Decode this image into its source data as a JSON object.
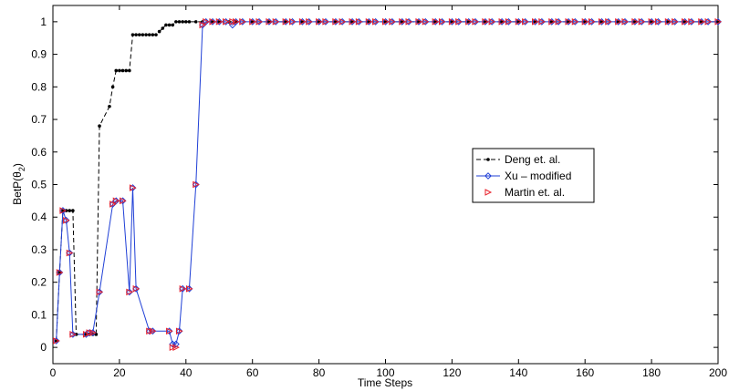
{
  "chart_data": {
    "type": "line",
    "title": "",
    "xlabel": "Time Steps",
    "ylabel_main": "BetP(θ",
    "ylabel_sub": "2",
    "ylabel_close": ")",
    "xlim": [
      0,
      200
    ],
    "ylim": [
      -0.05,
      1.05
    ],
    "xticks": [
      0,
      20,
      40,
      60,
      80,
      100,
      120,
      140,
      160,
      180,
      200
    ],
    "yticks": [
      0,
      0.1,
      0.2,
      0.3,
      0.4,
      0.5,
      0.6,
      0.7,
      0.8,
      0.9,
      1
    ],
    "grid": false,
    "legend_position": "center-right",
    "series": [
      {
        "name": "Deng et. al.",
        "style": "dashed",
        "marker": "dot",
        "color": "#000000",
        "points": [
          [
            1,
            0.02
          ],
          [
            2,
            0.23
          ],
          [
            3,
            0.42
          ],
          [
            4,
            0.42
          ],
          [
            5,
            0.42
          ],
          [
            6,
            0.42
          ],
          [
            7,
            0.04
          ],
          [
            10,
            0.04
          ],
          [
            11,
            0.04
          ],
          [
            12,
            0.04
          ],
          [
            13,
            0.04
          ],
          [
            14,
            0.68
          ],
          [
            17,
            0.74
          ],
          [
            18,
            0.8
          ],
          [
            19,
            0.85
          ],
          [
            20,
            0.85
          ],
          [
            21,
            0.85
          ],
          [
            22,
            0.85
          ],
          [
            23,
            0.85
          ],
          [
            24,
            0.96
          ],
          [
            25,
            0.96
          ],
          [
            26,
            0.96
          ],
          [
            27,
            0.96
          ],
          [
            28,
            0.96
          ],
          [
            29,
            0.96
          ],
          [
            30,
            0.96
          ],
          [
            31,
            0.96
          ],
          [
            32,
            0.97
          ],
          [
            33,
            0.98
          ],
          [
            34,
            0.99
          ],
          [
            35,
            0.99
          ],
          [
            36,
            0.99
          ],
          [
            37,
            1.0
          ],
          [
            38,
            1.0
          ],
          [
            39,
            1.0
          ],
          [
            40,
            1.0
          ],
          [
            41,
            1.0
          ],
          [
            43,
            1.0
          ],
          [
            45,
            1.0
          ],
          [
            48,
            1.0
          ],
          [
            50,
            1.0
          ],
          [
            53,
            1.0
          ],
          [
            55,
            1.0
          ],
          [
            60,
            1.0
          ],
          [
            65,
            1.0
          ],
          [
            70,
            1.0
          ],
          [
            75,
            1.0
          ],
          [
            80,
            1.0
          ],
          [
            85,
            1.0
          ],
          [
            90,
            1.0
          ],
          [
            95,
            1.0
          ],
          [
            100,
            1.0
          ],
          [
            105,
            1.0
          ],
          [
            110,
            1.0
          ],
          [
            115,
            1.0
          ],
          [
            120,
            1.0
          ],
          [
            125,
            1.0
          ],
          [
            130,
            1.0
          ],
          [
            135,
            1.0
          ],
          [
            140,
            1.0
          ],
          [
            145,
            1.0
          ],
          [
            150,
            1.0
          ],
          [
            155,
            1.0
          ],
          [
            160,
            1.0
          ],
          [
            165,
            1.0
          ],
          [
            170,
            1.0
          ],
          [
            175,
            1.0
          ],
          [
            180,
            1.0
          ],
          [
            185,
            1.0
          ],
          [
            190,
            1.0
          ],
          [
            195,
            1.0
          ],
          [
            200,
            1.0
          ]
        ]
      },
      {
        "name": "Xu – modified",
        "style": "solid",
        "marker": "diamond",
        "color": "#1f3fd6",
        "points": [
          [
            1,
            0.02
          ],
          [
            2,
            0.23
          ],
          [
            3,
            0.42
          ],
          [
            4,
            0.39
          ],
          [
            5,
            0.29
          ],
          [
            6,
            0.04
          ],
          [
            10,
            0.04
          ],
          [
            11,
            0.045
          ],
          [
            12,
            0.045
          ],
          [
            14,
            0.17
          ],
          [
            18,
            0.44
          ],
          [
            19,
            0.45
          ],
          [
            21,
            0.45
          ],
          [
            23,
            0.17
          ],
          [
            24,
            0.49
          ],
          [
            25,
            0.18
          ],
          [
            29,
            0.05
          ],
          [
            30,
            0.05
          ],
          [
            35,
            0.05
          ],
          [
            36,
            0.01
          ],
          [
            37,
            0.01
          ],
          [
            38,
            0.05
          ],
          [
            39,
            0.18
          ],
          [
            41,
            0.18
          ],
          [
            43,
            0.5
          ],
          [
            45,
            0.99
          ],
          [
            46,
            1.0
          ],
          [
            48,
            1.0
          ],
          [
            50,
            1.0
          ],
          [
            52,
            1.0
          ],
          [
            54,
            0.99
          ],
          [
            55,
            1.0
          ],
          [
            57,
            1.0
          ],
          [
            60,
            1.0
          ],
          [
            62,
            1.0
          ],
          [
            65,
            1.0
          ],
          [
            67,
            1.0
          ],
          [
            70,
            1.0
          ],
          [
            72,
            1.0
          ],
          [
            75,
            1.0
          ],
          [
            77,
            1.0
          ],
          [
            80,
            1.0
          ],
          [
            82,
            1.0
          ],
          [
            85,
            1.0
          ],
          [
            87,
            1.0
          ],
          [
            90,
            1.0
          ],
          [
            92,
            1.0
          ],
          [
            95,
            1.0
          ],
          [
            97,
            1.0
          ],
          [
            100,
            1.0
          ],
          [
            102,
            1.0
          ],
          [
            105,
            1.0
          ],
          [
            107,
            1.0
          ],
          [
            110,
            1.0
          ],
          [
            112,
            1.0
          ],
          [
            115,
            1.0
          ],
          [
            117,
            1.0
          ],
          [
            120,
            1.0
          ],
          [
            122,
            1.0
          ],
          [
            125,
            1.0
          ],
          [
            127,
            1.0
          ],
          [
            130,
            1.0
          ],
          [
            132,
            1.0
          ],
          [
            135,
            1.0
          ],
          [
            137,
            1.0
          ],
          [
            140,
            1.0
          ],
          [
            142,
            1.0
          ],
          [
            145,
            1.0
          ],
          [
            147,
            1.0
          ],
          [
            150,
            1.0
          ],
          [
            152,
            1.0
          ],
          [
            155,
            1.0
          ],
          [
            157,
            1.0
          ],
          [
            160,
            1.0
          ],
          [
            162,
            1.0
          ],
          [
            165,
            1.0
          ],
          [
            167,
            1.0
          ],
          [
            170,
            1.0
          ],
          [
            172,
            1.0
          ],
          [
            175,
            1.0
          ],
          [
            177,
            1.0
          ],
          [
            180,
            1.0
          ],
          [
            182,
            1.0
          ],
          [
            185,
            1.0
          ],
          [
            187,
            1.0
          ],
          [
            190,
            1.0
          ],
          [
            192,
            1.0
          ],
          [
            195,
            1.0
          ],
          [
            197,
            1.0
          ],
          [
            200,
            1.0
          ]
        ]
      },
      {
        "name": "Martin et. al.",
        "style": "none",
        "marker": "triangle-right",
        "color": "#e8202a",
        "points": [
          [
            1,
            0.02
          ],
          [
            2,
            0.23
          ],
          [
            3,
            0.42
          ],
          [
            4,
            0.39
          ],
          [
            5,
            0.29
          ],
          [
            6,
            0.04
          ],
          [
            10,
            0.04
          ],
          [
            11,
            0.045
          ],
          [
            12,
            0.045
          ],
          [
            14,
            0.17
          ],
          [
            18,
            0.44
          ],
          [
            19,
            0.45
          ],
          [
            21,
            0.45
          ],
          [
            23,
            0.17
          ],
          [
            24,
            0.49
          ],
          [
            25,
            0.18
          ],
          [
            29,
            0.05
          ],
          [
            30,
            0.05
          ],
          [
            35,
            0.05
          ],
          [
            36,
            0.0
          ],
          [
            37,
            0.0
          ],
          [
            38,
            0.05
          ],
          [
            39,
            0.18
          ],
          [
            41,
            0.18
          ],
          [
            43,
            0.5
          ],
          [
            45,
            0.99
          ],
          [
            46,
            1.0
          ],
          [
            48,
            1.0
          ],
          [
            50,
            1.0
          ],
          [
            52,
            1.0
          ],
          [
            54,
            1.0
          ],
          [
            55,
            1.0
          ],
          [
            57,
            1.0
          ],
          [
            60,
            1.0
          ],
          [
            62,
            1.0
          ],
          [
            65,
            1.0
          ],
          [
            67,
            1.0
          ],
          [
            70,
            1.0
          ],
          [
            72,
            1.0
          ],
          [
            75,
            1.0
          ],
          [
            77,
            1.0
          ],
          [
            80,
            1.0
          ],
          [
            82,
            1.0
          ],
          [
            85,
            1.0
          ],
          [
            87,
            1.0
          ],
          [
            90,
            1.0
          ],
          [
            92,
            1.0
          ],
          [
            95,
            1.0
          ],
          [
            97,
            1.0
          ],
          [
            100,
            1.0
          ],
          [
            102,
            1.0
          ],
          [
            105,
            1.0
          ],
          [
            107,
            1.0
          ],
          [
            110,
            1.0
          ],
          [
            112,
            1.0
          ],
          [
            115,
            1.0
          ],
          [
            117,
            1.0
          ],
          [
            120,
            1.0
          ],
          [
            122,
            1.0
          ],
          [
            125,
            1.0
          ],
          [
            127,
            1.0
          ],
          [
            130,
            1.0
          ],
          [
            132,
            1.0
          ],
          [
            135,
            1.0
          ],
          [
            137,
            1.0
          ],
          [
            140,
            1.0
          ],
          [
            142,
            1.0
          ],
          [
            145,
            1.0
          ],
          [
            147,
            1.0
          ],
          [
            150,
            1.0
          ],
          [
            152,
            1.0
          ],
          [
            155,
            1.0
          ],
          [
            157,
            1.0
          ],
          [
            160,
            1.0
          ],
          [
            162,
            1.0
          ],
          [
            165,
            1.0
          ],
          [
            167,
            1.0
          ],
          [
            170,
            1.0
          ],
          [
            172,
            1.0
          ],
          [
            175,
            1.0
          ],
          [
            177,
            1.0
          ],
          [
            180,
            1.0
          ],
          [
            182,
            1.0
          ],
          [
            185,
            1.0
          ],
          [
            187,
            1.0
          ],
          [
            190,
            1.0
          ],
          [
            192,
            1.0
          ],
          [
            195,
            1.0
          ],
          [
            197,
            1.0
          ],
          [
            200,
            1.0
          ]
        ]
      }
    ]
  }
}
